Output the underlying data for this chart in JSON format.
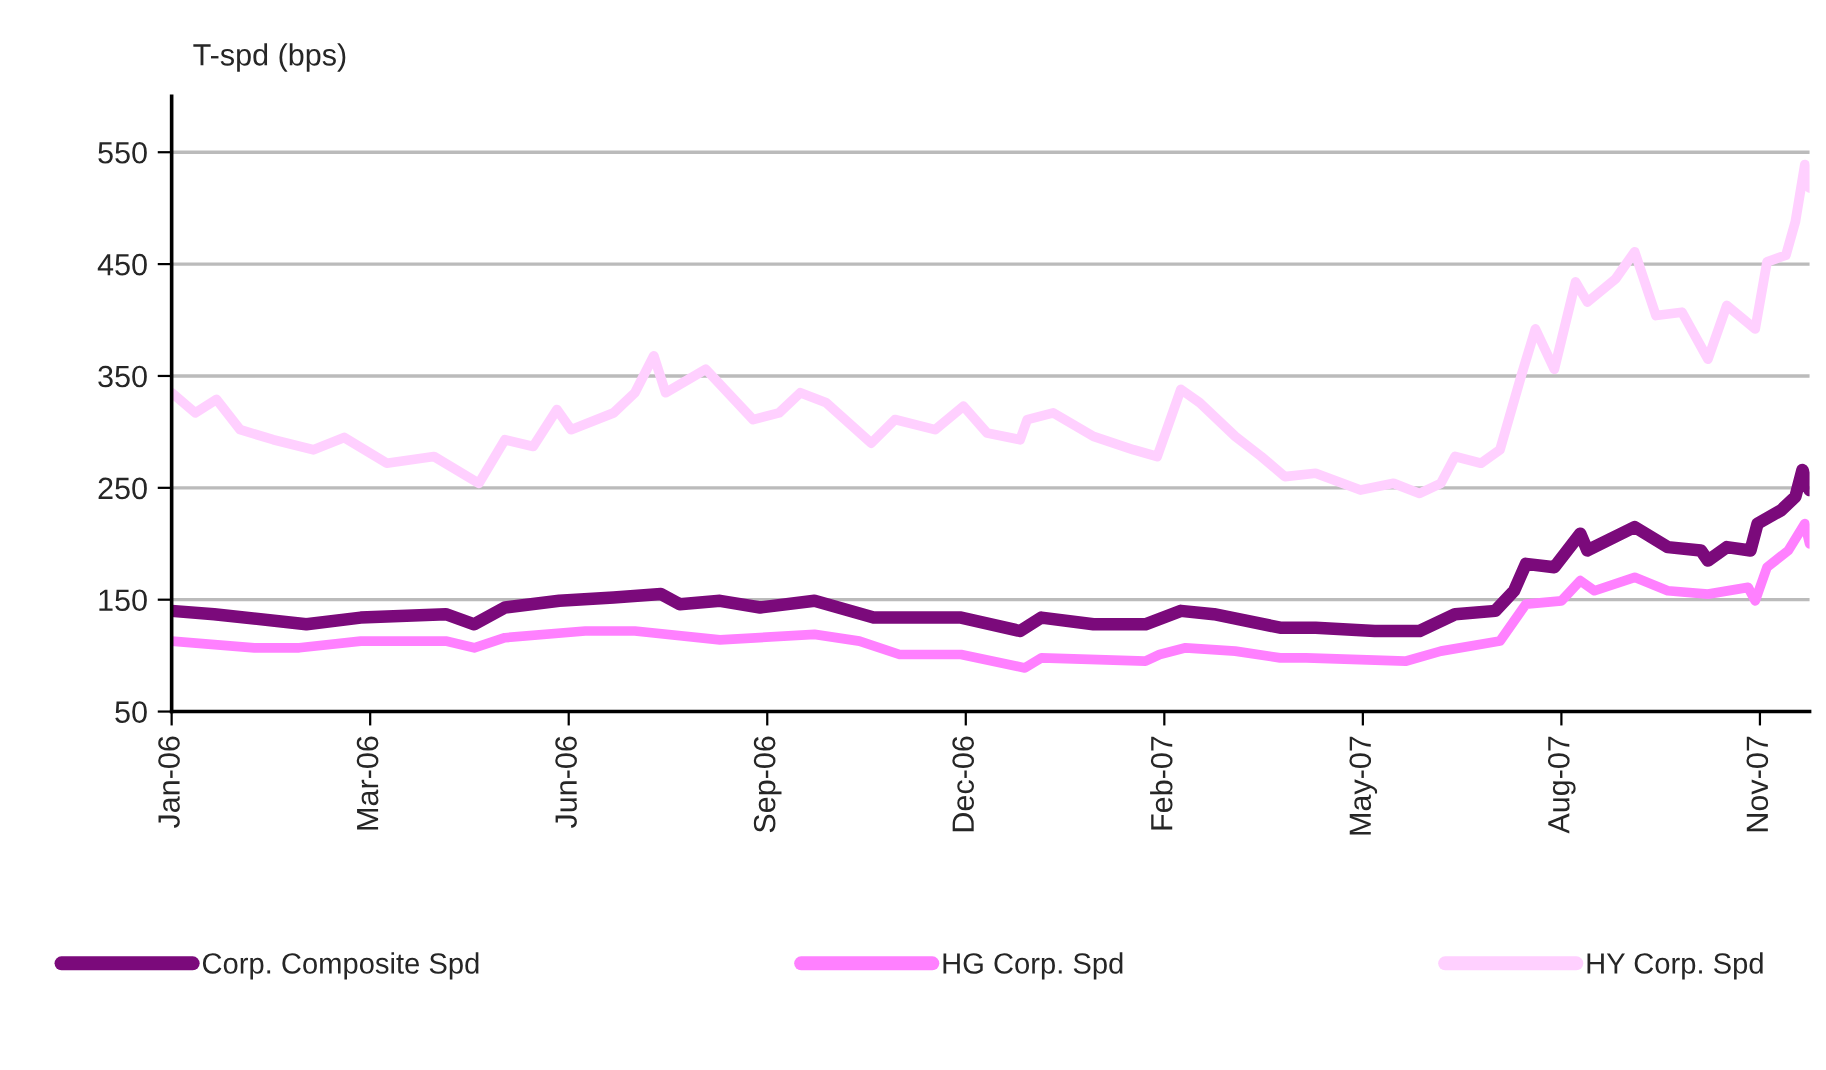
{
  "chart_data": {
    "type": "line",
    "ylabel": "T-spd (bps)",
    "ylim": [
      50,
      600
    ],
    "yticks": [
      50,
      150,
      250,
      350,
      450,
      550
    ],
    "xlim": [
      "2006-01-02",
      "2007-11-26"
    ],
    "xticks": [
      {
        "value": "2006-01-02",
        "label": "Jan-06"
      },
      {
        "value": "2006-03-27",
        "label": "Mar-06"
      },
      {
        "value": "2006-06-19",
        "label": "Jun-06"
      },
      {
        "value": "2006-09-11",
        "label": "Sep-06"
      },
      {
        "value": "2006-12-04",
        "label": "Dec-06"
      },
      {
        "value": "2007-02-26",
        "label": "Feb-07"
      },
      {
        "value": "2007-05-21",
        "label": "May-07"
      },
      {
        "value": "2007-08-13",
        "label": "Aug-07"
      },
      {
        "value": "2007-11-05",
        "label": "Nov-07"
      }
    ],
    "grid": "y",
    "legend": "bottom",
    "marker": "none",
    "line_style": "solid",
    "series": [
      {
        "name": "Corp. Composite Spd",
        "color": "#7b0a7b",
        "x": [
          "2006-01-02",
          "2006-01-20",
          "2006-02-28",
          "2006-03-23",
          "2006-04-28",
          "2006-05-10",
          "2006-05-23",
          "2006-06-15",
          "2006-07-08",
          "2006-07-28",
          "2006-08-05",
          "2006-08-22",
          "2006-09-08",
          "2006-10-01",
          "2006-10-26",
          "2006-12-02",
          "2006-12-27",
          "2007-01-05",
          "2007-01-27",
          "2007-02-18",
          "2007-03-05",
          "2007-03-19",
          "2007-04-16",
          "2007-05-01",
          "2007-05-26",
          "2007-06-14",
          "2007-06-29",
          "2007-07-16",
          "2007-07-24",
          "2007-07-29",
          "2007-08-10",
          "2007-08-21",
          "2007-08-24",
          "2007-09-13",
          "2007-09-27",
          "2007-10-11",
          "2007-10-14",
          "2007-10-22",
          "2007-11-01",
          "2007-11-04",
          "2007-11-14",
          "2007-11-20",
          "2007-11-23",
          "2007-11-26"
        ],
        "values": [
          140,
          137,
          128,
          134,
          137,
          128,
          143,
          149,
          152,
          155,
          146,
          149,
          143,
          149,
          134,
          134,
          122,
          134,
          128,
          128,
          140,
          137,
          125,
          125,
          122,
          122,
          137,
          140,
          158,
          182,
          179,
          209,
          194,
          215,
          197,
          194,
          185,
          197,
          194,
          218,
          230,
          242,
          266,
          248
        ]
      },
      {
        "name": "HG Corp. Spd",
        "color": "#ff80ff",
        "x": [
          "2006-01-02",
          "2006-02-06",
          "2006-02-25",
          "2006-03-23",
          "2006-04-28",
          "2006-05-10",
          "2006-05-23",
          "2006-06-26",
          "2006-07-17",
          "2006-08-22",
          "2006-10-01",
          "2006-10-20",
          "2006-11-06",
          "2006-12-02",
          "2006-12-29",
          "2007-01-05",
          "2007-02-18",
          "2007-02-24",
          "2007-03-07",
          "2007-03-28",
          "2007-04-16",
          "2007-04-27",
          "2007-06-08",
          "2007-06-23",
          "2007-07-18",
          "2007-07-29",
          "2007-08-13",
          "2007-08-21",
          "2007-08-27",
          "2007-09-13",
          "2007-09-27",
          "2007-10-14",
          "2007-10-31",
          "2007-11-03",
          "2007-11-08",
          "2007-11-17",
          "2007-11-24",
          "2007-11-26"
        ],
        "values": [
          113,
          107,
          107,
          113,
          113,
          107,
          116,
          122,
          122,
          114,
          119,
          113,
          101,
          101,
          89,
          98,
          95,
          101,
          107,
          104,
          98,
          98,
          95,
          104,
          113,
          146,
          149,
          167,
          158,
          170,
          158,
          155,
          161,
          149,
          179,
          194,
          218,
          200
        ]
      },
      {
        "name": "HY Corp. Spd",
        "color": "#ffd0ff",
        "x": [
          "2006-01-02",
          "2006-01-12",
          "2006-01-21",
          "2006-01-31",
          "2006-02-14",
          "2006-03-03",
          "2006-03-16",
          "2006-04-03",
          "2006-04-23",
          "2006-05-12",
          "2006-05-23",
          "2006-06-04",
          "2006-06-14",
          "2006-06-20",
          "2006-07-08",
          "2006-07-17",
          "2006-07-25",
          "2006-07-30",
          "2006-08-16",
          "2006-09-05",
          "2006-09-16",
          "2006-09-25",
          "2006-10-06",
          "2006-10-25",
          "2006-11-04",
          "2006-11-21",
          "2006-12-03",
          "2006-12-13",
          "2006-12-27",
          "2006-12-30",
          "2007-01-10",
          "2007-01-27",
          "2007-02-13",
          "2007-02-23",
          "2007-03-05",
          "2007-03-13",
          "2007-03-28",
          "2007-04-08",
          "2007-04-18",
          "2007-05-01",
          "2007-05-20",
          "2007-06-03",
          "2007-06-14",
          "2007-06-23",
          "2007-06-29",
          "2007-07-10",
          "2007-07-18",
          "2007-07-27",
          "2007-08-02",
          "2007-08-10",
          "2007-08-19",
          "2007-08-24",
          "2007-09-05",
          "2007-09-13",
          "2007-09-22",
          "2007-10-03",
          "2007-10-14",
          "2007-10-22",
          "2007-11-03",
          "2007-11-08",
          "2007-11-16",
          "2007-11-20",
          "2007-11-24",
          "2007-11-26"
        ],
        "values": [
          335,
          317,
          329,
          302,
          293,
          284,
          295,
          272,
          278,
          254,
          293,
          287,
          320,
          302,
          317,
          335,
          368,
          335,
          356,
          311,
          317,
          335,
          326,
          290,
          311,
          302,
          323,
          299,
          293,
          311,
          317,
          296,
          284,
          278,
          338,
          326,
          296,
          278,
          260,
          263,
          248,
          254,
          245,
          254,
          278,
          272,
          284,
          350,
          392,
          356,
          434,
          416,
          437,
          461,
          404,
          407,
          365,
          413,
          392,
          452,
          458,
          488,
          539,
          518
        ]
      }
    ]
  }
}
